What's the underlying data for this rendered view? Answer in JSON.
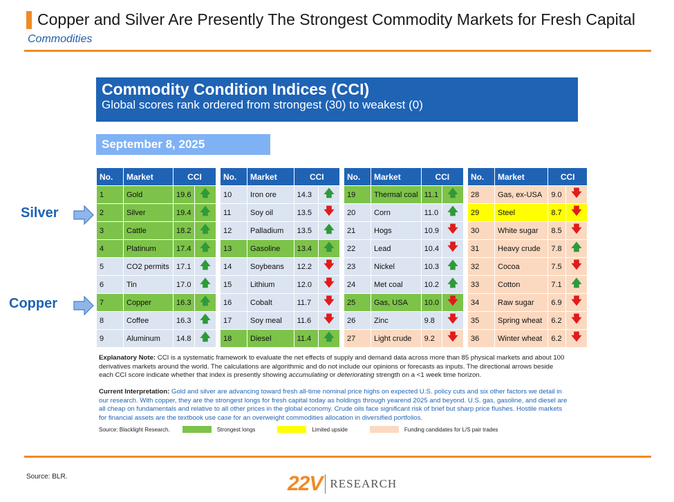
{
  "header": {
    "title": "Copper and Silver Are Presently The Strongest Commodity Markets for Fresh Capital",
    "subtitle": "Commodities"
  },
  "banner": {
    "title": "Commodity Condition Indices (CCI)",
    "subtitle": "Global scores rank ordered from strongest (30) to weakest (0)"
  },
  "date": "September 8, 2025",
  "columns": [
    "No.",
    "Market",
    "CCI"
  ],
  "colors": {
    "strong": "#7dc34a",
    "limited": "#ffff00",
    "funding": "#fbd9c0",
    "neutral": "#dbe4f0",
    "accent": "#1f63b5",
    "orange": "#f08a24"
  },
  "tables": [
    [
      {
        "no": "1",
        "market": "Gold",
        "cci": "19.6",
        "dir": "up",
        "hl": "g"
      },
      {
        "no": "2",
        "market": "Silver",
        "cci": "19.4",
        "dir": "up",
        "hl": "g"
      },
      {
        "no": "3",
        "market": "Cattle",
        "cci": "18.2",
        "dir": "up",
        "hl": "g"
      },
      {
        "no": "4",
        "market": "Platinum",
        "cci": "17.4",
        "dir": "up",
        "hl": "g"
      },
      {
        "no": "5",
        "market": "CO2 permits",
        "cci": "17.1",
        "dir": "up",
        "hl": ""
      },
      {
        "no": "6",
        "market": "Tin",
        "cci": "17.0",
        "dir": "up",
        "hl": ""
      },
      {
        "no": "7",
        "market": "Copper",
        "cci": "16.3",
        "dir": "up",
        "hl": "g"
      },
      {
        "no": "8",
        "market": "Coffee",
        "cci": "16.3",
        "dir": "up",
        "hl": ""
      },
      {
        "no": "9",
        "market": "Aluminum",
        "cci": "14.8",
        "dir": "up",
        "hl": ""
      }
    ],
    [
      {
        "no": "10",
        "market": "Iron ore",
        "cci": "14.3",
        "dir": "up",
        "hl": ""
      },
      {
        "no": "11",
        "market": "Soy oil",
        "cci": "13.5",
        "dir": "down",
        "hl": ""
      },
      {
        "no": "12",
        "market": "Palladium",
        "cci": "13.5",
        "dir": "up",
        "hl": ""
      },
      {
        "no": "13",
        "market": "Gasoline",
        "cci": "13.4",
        "dir": "up",
        "hl": "g"
      },
      {
        "no": "14",
        "market": "Soybeans",
        "cci": "12.2",
        "dir": "down",
        "hl": ""
      },
      {
        "no": "15",
        "market": "Lithium",
        "cci": "12.0",
        "dir": "down",
        "hl": ""
      },
      {
        "no": "16",
        "market": "Cobalt",
        "cci": "11.7",
        "dir": "down",
        "hl": ""
      },
      {
        "no": "17",
        "market": "Soy meal",
        "cci": "11.6",
        "dir": "down",
        "hl": ""
      },
      {
        "no": "18",
        "market": "Diesel",
        "cci": "11.4",
        "dir": "up",
        "hl": "g"
      }
    ],
    [
      {
        "no": "19",
        "market": "Thermal coal",
        "cci": "11.1",
        "dir": "up",
        "hl": "g"
      },
      {
        "no": "20",
        "market": "Corn",
        "cci": "11.0",
        "dir": "up",
        "hl": ""
      },
      {
        "no": "21",
        "market": "Hogs",
        "cci": "10.9",
        "dir": "down",
        "hl": ""
      },
      {
        "no": "22",
        "market": "Lead",
        "cci": "10.4",
        "dir": "down",
        "hl": ""
      },
      {
        "no": "23",
        "market": "Nickel",
        "cci": "10.3",
        "dir": "up",
        "hl": ""
      },
      {
        "no": "24",
        "market": "Met coal",
        "cci": "10.2",
        "dir": "up",
        "hl": ""
      },
      {
        "no": "25",
        "market": "Gas, USA",
        "cci": "10.0",
        "dir": "down",
        "hl": "g"
      },
      {
        "no": "26",
        "market": "Zinc",
        "cci": "9.8",
        "dir": "down",
        "hl": ""
      },
      {
        "no": "27",
        "market": "Light crude",
        "cci": "9.2",
        "dir": "down",
        "hl": "p"
      }
    ],
    [
      {
        "no": "28",
        "market": "Gas, ex-USA",
        "cci": "9.0",
        "dir": "down",
        "hl": "p"
      },
      {
        "no": "29",
        "market": "Steel",
        "cci": "8.7",
        "dir": "down",
        "hl": "y"
      },
      {
        "no": "30",
        "market": "White sugar",
        "cci": "8.5",
        "dir": "down",
        "hl": "p"
      },
      {
        "no": "31",
        "market": "Heavy crude",
        "cci": "7.8",
        "dir": "up",
        "hl": "p"
      },
      {
        "no": "32",
        "market": "Cocoa",
        "cci": "7.5",
        "dir": "down",
        "hl": "p"
      },
      {
        "no": "33",
        "market": "Cotton",
        "cci": "7.1",
        "dir": "up",
        "hl": "p"
      },
      {
        "no": "34",
        "market": "Raw sugar",
        "cci": "6.9",
        "dir": "down",
        "hl": "p"
      },
      {
        "no": "35",
        "market": "Spring wheat",
        "cci": "6.2",
        "dir": "down",
        "hl": "p"
      },
      {
        "no": "36",
        "market": "Winter wheat",
        "cci": "6.2",
        "dir": "down",
        "hl": "p"
      }
    ]
  ],
  "callouts": {
    "silver": "Silver",
    "copper": "Copper"
  },
  "notes": {
    "explanatory_label": "Explanatory Note:",
    "explanatory_text1": " CCI is a systematic framework to evaluate the net effects of supply and demand data across more than 85 physical markets and about 100 derivatives markets around the world. The calculations are algorithmic and do not include our opinions or forecasts as inputs. The directional arrows beside each CCI score indicate whether that index is presently showing ",
    "explanatory_em1": "accumulating",
    "explanatory_mid": " or ",
    "explanatory_em2": "deteriorating",
    "explanatory_text2": " strength on a <1 week time horizon.",
    "interp_label": "Current Interpretation:",
    "interp_text": " Gold and silver are advancing toward fresh all-time nominal price highs on expected U.S. policy cuts and six other factors we detail in our research. With copper, they are the strongest longs for fresh capital today as holdings through yearend 2025 and beyond. U.S. gas, gasoline, and diesel are all cheap on fundamentals and relative to all other prices in the global economy. Crude oils face significant risk of brief but sharp price flushes. Hostile markets for financial assets are the textbook use case for an overweight commodities allocation in diversified portfolios."
  },
  "legend": {
    "source": "Source: Blacklight Research.",
    "strong": "Strongest longs",
    "limited": "Limited upside",
    "funding": "Funding candidates for L/S pair trades"
  },
  "footer": {
    "source": "Source: BLR.",
    "logo_mark": "22V",
    "logo_text": "RESEARCH"
  },
  "icons": {
    "up": "green-up-arrow-icon",
    "down": "red-down-arrow-icon",
    "callout": "blue-right-arrow-icon"
  }
}
